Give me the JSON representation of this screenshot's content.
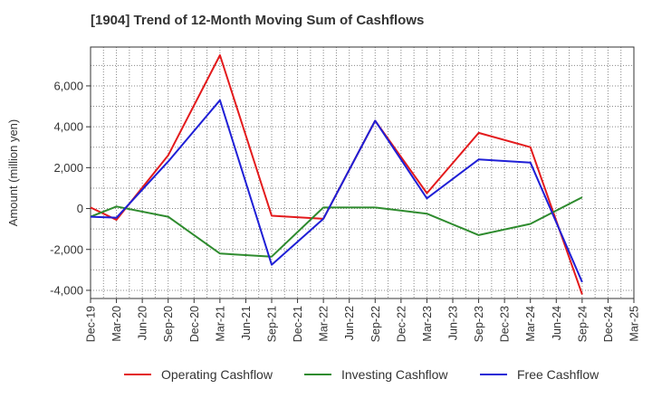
{
  "chart_data": {
    "type": "line",
    "title": "[1904]  Trend of 12-Month Moving Sum of Cashflows",
    "xlabel": "",
    "ylabel": "Amount (million yen)",
    "ylim": [
      -4400,
      7900
    ],
    "yticks": [
      -4000,
      -2000,
      0,
      2000,
      4000,
      6000
    ],
    "ytick_labels": [
      "-4,000",
      "-2,000",
      "0",
      "2,000",
      "4,000",
      "6,000"
    ],
    "categories": [
      "Dec-19",
      "Mar-20",
      "Jun-20",
      "Sep-20",
      "Dec-20",
      "Mar-21",
      "Jun-21",
      "Sep-21",
      "Dec-21",
      "Mar-22",
      "Jun-22",
      "Sep-22",
      "Dec-22",
      "Mar-23",
      "Jun-23",
      "Sep-23",
      "Dec-23",
      "Mar-24",
      "Jun-24",
      "Sep-24",
      "Dec-24",
      "Mar-25"
    ],
    "grid": true,
    "legend_position": "bottom",
    "series": [
      {
        "name": "Operating Cashflow",
        "color": "#e31a1c",
        "values": [
          50,
          -550,
          null,
          2600,
          null,
          7500,
          null,
          -350,
          null,
          -500,
          null,
          4300,
          null,
          750,
          null,
          3700,
          null,
          3000,
          null,
          -4200,
          null,
          null
        ]
      },
      {
        "name": "Investing Cashflow",
        "color": "#2e8b2e",
        "values": [
          -400,
          100,
          null,
          -400,
          null,
          -2200,
          null,
          -2350,
          null,
          50,
          null,
          50,
          null,
          -250,
          null,
          -1300,
          null,
          -750,
          null,
          550,
          null,
          null
        ]
      },
      {
        "name": "Free Cashflow",
        "color": "#1f1fd6",
        "values": [
          -400,
          -450,
          null,
          2300,
          null,
          5300,
          null,
          -2750,
          null,
          -500,
          null,
          4300,
          null,
          500,
          null,
          2400,
          null,
          2250,
          null,
          -3600,
          null,
          null
        ]
      }
    ]
  }
}
